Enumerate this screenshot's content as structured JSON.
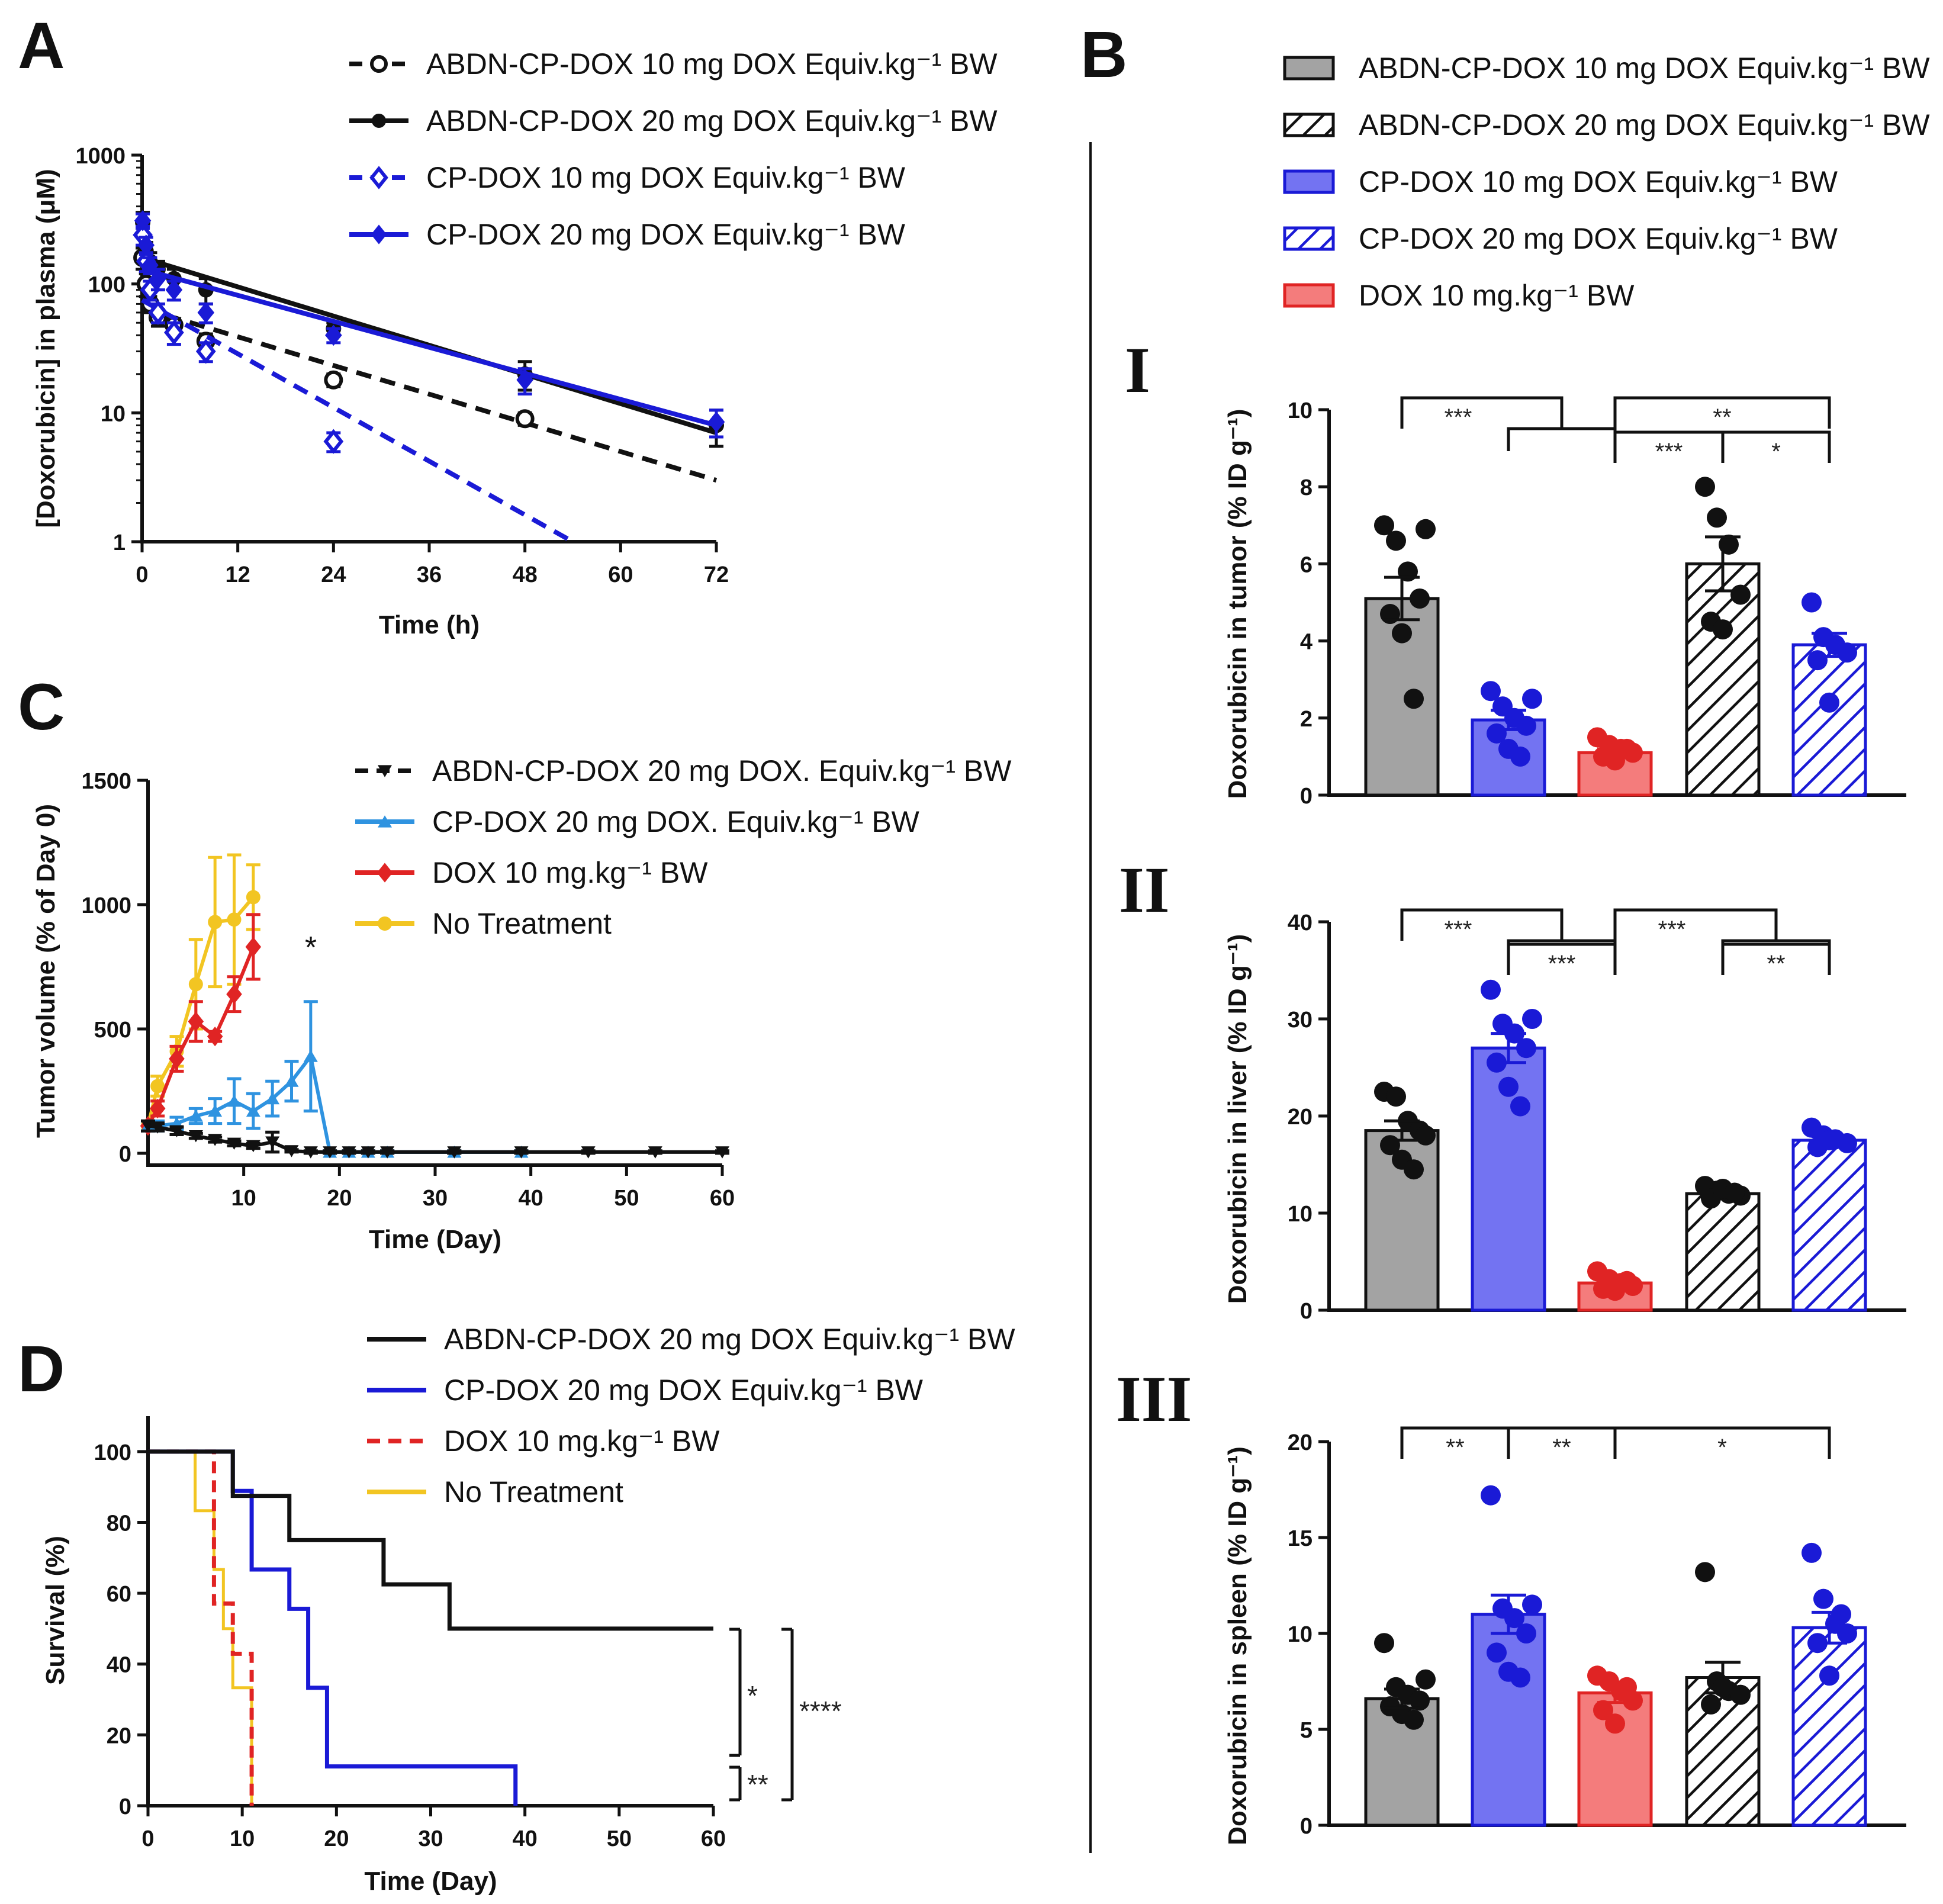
{
  "colors": {
    "black": "#111111",
    "blue": "#1a1ad6",
    "lightblue": "#2f93e0",
    "red": "#e02424",
    "yellow": "#f2c522",
    "gray": "#a3a3a3",
    "bluefill": "#7373f2",
    "redfill": "#f47c7c"
  },
  "chart_data": [
    {
      "id": "A",
      "panel_label": "A",
      "type": "line",
      "xlabel": "Time (h)",
      "ylabel": "[Doxorubicin] in plasma (μM)",
      "yscale": "log",
      "xlim": [
        0,
        72
      ],
      "ylim": [
        1,
        1000
      ],
      "xticks": [
        "0",
        "12",
        "24",
        "36",
        "48",
        "60",
        "72"
      ],
      "yticks": [
        "1",
        "10",
        "100",
        "1000"
      ],
      "series": [
        {
          "name": "ABDN-CP-DOX 10 mg DOX Equiv.kg⁻¹ BW",
          "color": "black",
          "dash": true,
          "marker": "open-circle",
          "x": [
            0.08,
            0.5,
            1,
            2,
            4,
            8,
            24,
            48
          ],
          "y": [
            160,
            100,
            70,
            55,
            48,
            36,
            18,
            9
          ],
          "err": [
            30,
            20,
            10,
            8,
            6,
            5,
            2,
            1
          ],
          "fit": [
            [
              0,
              65
            ],
            [
              72,
              3
            ]
          ]
        },
        {
          "name": "ABDN-CP-DOX 20 mg DOX Equiv.kg⁻¹ BW",
          "color": "black",
          "dash": false,
          "marker": "filled-circle",
          "x": [
            0.08,
            0.5,
            1,
            2,
            4,
            8,
            24,
            48,
            72
          ],
          "y": [
            300,
            180,
            150,
            130,
            110,
            90,
            45,
            20,
            8
          ],
          "err": [
            60,
            30,
            25,
            20,
            20,
            20,
            5,
            5,
            2.5
          ],
          "fit": [
            [
              0,
              160
            ],
            [
              72,
              7
            ]
          ]
        },
        {
          "name": "CP-DOX 10 mg DOX Equiv.kg⁻¹ BW",
          "color": "blue",
          "dash": true,
          "marker": "open-diamond",
          "x": [
            0.08,
            0.5,
            1,
            2,
            4,
            8,
            24
          ],
          "y": [
            240,
            150,
            90,
            60,
            42,
            30,
            6
          ],
          "err": [
            40,
            25,
            15,
            10,
            8,
            5,
            1
          ],
          "fit": [
            [
              0,
              75
            ],
            [
              54,
              1
            ]
          ]
        },
        {
          "name": "CP-DOX 20 mg DOX Equiv.kg⁻¹ BW",
          "color": "blue",
          "dash": false,
          "marker": "filled-diamond",
          "x": [
            0.08,
            0.5,
            1,
            2,
            4,
            8,
            24,
            48,
            72
          ],
          "y": [
            310,
            200,
            140,
            110,
            90,
            60,
            40,
            18,
            8.5
          ],
          "err": [
            40,
            30,
            20,
            20,
            15,
            10,
            5,
            4,
            2
          ],
          "fit": [
            [
              0,
              130
            ],
            [
              72,
              8
            ]
          ]
        }
      ]
    },
    {
      "id": "C",
      "panel_label": "C",
      "type": "line",
      "xlabel": "Time (Day)",
      "ylabel": "Tumor volume (% of Day 0)",
      "xlim": [
        0,
        60
      ],
      "ylim": [
        0,
        1500
      ],
      "xticks": [
        "10",
        "20",
        "30",
        "40",
        "50",
        "60"
      ],
      "yticks": [
        "0",
        "500",
        "1000",
        "1500"
      ],
      "annotation": "*",
      "series": [
        {
          "name": "ABDN-CP-DOX 20 mg DOX. Equiv.kg⁻¹ BW",
          "color": "black",
          "marker": "triangle-down",
          "x": [
            0,
            1,
            3,
            5,
            7,
            9,
            11,
            13,
            15,
            17,
            19,
            21,
            23,
            25,
            32,
            39,
            46,
            53,
            60
          ],
          "y": [
            110,
            105,
            90,
            70,
            55,
            40,
            30,
            45,
            10,
            5,
            5,
            5,
            5,
            5,
            5,
            5,
            5,
            5,
            5
          ],
          "err": [
            20,
            15,
            15,
            10,
            10,
            10,
            10,
            40,
            5,
            5,
            5,
            5,
            5,
            5,
            5,
            5,
            5,
            5,
            5
          ]
        },
        {
          "name": "CP-DOX 20 mg DOX. Equiv.kg⁻¹ BW",
          "color": "lightblue",
          "marker": "triangle-up",
          "x": [
            0,
            1,
            3,
            5,
            7,
            9,
            11,
            13,
            15,
            17,
            19,
            21,
            23,
            25,
            32,
            39
          ],
          "y": [
            110,
            110,
            120,
            150,
            170,
            210,
            170,
            220,
            290,
            390,
            5,
            5,
            5,
            5,
            5,
            5
          ],
          "err": [
            20,
            20,
            25,
            30,
            50,
            90,
            70,
            70,
            80,
            220,
            5,
            5,
            5,
            5,
            5,
            5
          ]
        },
        {
          "name": "DOX 10 mg.kg⁻¹ BW",
          "color": "red",
          "marker": "diamond",
          "x": [
            0,
            1,
            3,
            5,
            7,
            9,
            11
          ],
          "y": [
            110,
            180,
            380,
            530,
            470,
            640,
            830
          ],
          "err": [
            20,
            30,
            50,
            80,
            20,
            70,
            130
          ]
        },
        {
          "name": "No Treatment",
          "color": "yellow",
          "marker": "circle",
          "x": [
            0,
            1,
            3,
            5,
            7,
            9,
            11
          ],
          "y": [
            110,
            270,
            410,
            680,
            930,
            940,
            1030
          ],
          "err": [
            20,
            40,
            60,
            180,
            260,
            260,
            130
          ]
        }
      ]
    },
    {
      "id": "D",
      "panel_label": "D",
      "type": "line",
      "subtype": "kaplan-meier",
      "xlabel": "Time (Day)",
      "ylabel": "Survival (%)",
      "xlim": [
        0,
        60
      ],
      "ylim": [
        0,
        110
      ],
      "xticks": [
        "0",
        "10",
        "20",
        "30",
        "40",
        "50",
        "60"
      ],
      "yticks": [
        "0",
        "20",
        "40",
        "60",
        "80",
        "100"
      ],
      "series": [
        {
          "name": "ABDN-CP-DOX 20 mg DOX Equiv.kg⁻¹ BW",
          "color": "black",
          "dash": false,
          "steps": [
            [
              0,
              100
            ],
            [
              9,
              87.5
            ],
            [
              15,
              75
            ],
            [
              25,
              62.5
            ],
            [
              32,
              50
            ],
            [
              60,
              50
            ]
          ]
        },
        {
          "name": "CP-DOX 20 mg DOX Equiv.kg⁻¹ BW",
          "color": "blue",
          "dash": false,
          "steps": [
            [
              0,
              100
            ],
            [
              9,
              88.9
            ],
            [
              11,
              66.7
            ],
            [
              15,
              55.6
            ],
            [
              17,
              33.3
            ],
            [
              19,
              11.1
            ],
            [
              39,
              0
            ]
          ]
        },
        {
          "name": "DOX 10 mg.kg⁻¹ BW",
          "color": "red",
          "dash": true,
          "steps": [
            [
              0,
              100
            ],
            [
              7,
              57.1
            ],
            [
              9,
              42.9
            ],
            [
              11,
              0
            ]
          ]
        },
        {
          "name": "No Treatment",
          "color": "yellow",
          "dash": false,
          "steps": [
            [
              0,
              100
            ],
            [
              5,
              83.3
            ],
            [
              7,
              66.7
            ],
            [
              8,
              50
            ],
            [
              9,
              33.3
            ],
            [
              11,
              0
            ]
          ]
        }
      ],
      "significance": [
        "*",
        "****",
        "**"
      ]
    },
    {
      "id": "B",
      "panel_label": "B",
      "type": "bar",
      "legend": [
        {
          "name": "ABDN-CP-DOX 10 mg DOX Equiv.kg⁻¹ BW",
          "fill": "gray",
          "hatch": false,
          "edge": "black"
        },
        {
          "name": "ABDN-CP-DOX 20 mg DOX Equiv.kg⁻¹ BW",
          "fill": "white",
          "hatch": true,
          "edge": "black"
        },
        {
          "name": "CP-DOX 10 mg DOX Equiv.kg⁻¹ BW",
          "fill": "bluefill",
          "hatch": false,
          "edge": "blue"
        },
        {
          "name": "CP-DOX 20 mg DOX Equiv.kg⁻¹ BW",
          "fill": "white",
          "hatch": true,
          "edge": "blue"
        },
        {
          "name": "DOX 10 mg.kg⁻¹ BW",
          "fill": "redfill",
          "hatch": false,
          "edge": "red"
        }
      ],
      "subpanels": [
        {
          "roman": "I",
          "ylabel": "Doxorubicin in tumor (% ID g⁻¹)",
          "ylim": [
            0,
            10
          ],
          "yticks": [
            "0",
            "2",
            "4",
            "6",
            "8",
            "10"
          ],
          "categories": [
            "ABDN-CP-DOX 10",
            "CP-DOX 10",
            "DOX 10",
            "ABDN-CP-DOX 20",
            "CP-DOX 20"
          ],
          "values": [
            5.1,
            1.95,
            1.1,
            6.0,
            3.9
          ],
          "sem": [
            0.55,
            0.25,
            0.1,
            0.7,
            0.3
          ],
          "points": [
            [
              7.0,
              6.6,
              5.8,
              5.1,
              4.7,
              4.2,
              2.5,
              6.9
            ],
            [
              2.7,
              2.3,
              2.0,
              1.8,
              1.6,
              1.2,
              1.0,
              2.5
            ],
            [
              1.5,
              1.3,
              1.2,
              1.1,
              1.0,
              0.9,
              1.2
            ],
            [
              8.0,
              7.2,
              6.5,
              5.2,
              4.5,
              4.3
            ],
            [
              5.0,
              4.1,
              3.9,
              3.7,
              3.5,
              2.4
            ]
          ],
          "brackets": [
            {
              "a": 0,
              "b": [
                1,
                2
              ],
              "level": 0,
              "label": "***"
            },
            {
              "a": 2,
              "b": 4,
              "level": 0,
              "label": "**"
            },
            {
              "a": 2,
              "b": 3,
              "level": 1,
              "label": "***"
            },
            {
              "a": 3,
              "b": 4,
              "level": 1,
              "label": "*"
            }
          ]
        },
        {
          "roman": "II",
          "ylabel": "Doxorubicin in liver (% ID g⁻¹)",
          "ylim": [
            0,
            40
          ],
          "yticks": [
            "0",
            "10",
            "20",
            "30",
            "40"
          ],
          "categories": [
            "ABDN-CP-DOX 10",
            "CP-DOX 10",
            "DOX 10",
            "ABDN-CP-DOX 20",
            "CP-DOX 20"
          ],
          "values": [
            18.5,
            27.0,
            2.8,
            12.0,
            17.5
          ],
          "sem": [
            1.0,
            1.5,
            0.4,
            0.3,
            0.4
          ],
          "points": [
            [
              22.5,
              22.0,
              19.5,
              18.5,
              17.0,
              15.5,
              14.5,
              18.0
            ],
            [
              33.0,
              29.5,
              28.5,
              27.0,
              25.5,
              23.0,
              21.0,
              30.0
            ],
            [
              4.0,
              3.2,
              2.8,
              2.5,
              2.2,
              2.0,
              3.0
            ],
            [
              12.8,
              12.3,
              12.0,
              11.8,
              11.5,
              12.5,
              12.1
            ],
            [
              18.8,
              18.0,
              17.6,
              17.2,
              16.8,
              17.5
            ]
          ],
          "brackets": [
            {
              "a": 0,
              "b": [
                1,
                2
              ],
              "level": 0,
              "label": "***"
            },
            {
              "a": 1,
              "b": 2,
              "level": 1,
              "label": "***"
            },
            {
              "a": 2,
              "b": [
                3,
                4
              ],
              "level": 0,
              "label": "***"
            },
            {
              "a": 3,
              "b": 4,
              "level": 1,
              "label": "**"
            }
          ]
        },
        {
          "roman": "III",
          "ylabel": "Doxorubicin in spleen (% ID g⁻¹)",
          "ylim": [
            0,
            20
          ],
          "yticks": [
            "0",
            "5",
            "10",
            "15",
            "20"
          ],
          "categories": [
            "ABDN-CP-DOX 10",
            "CP-DOX 10",
            "DOX 10",
            "ABDN-CP-DOX 20",
            "CP-DOX 20"
          ],
          "values": [
            6.6,
            11.0,
            6.9,
            7.7,
            10.3
          ],
          "sem": [
            0.5,
            1.0,
            0.5,
            0.8,
            0.8
          ],
          "points": [
            [
              9.5,
              7.2,
              6.8,
              6.5,
              6.2,
              5.8,
              5.5,
              7.6
            ],
            [
              17.2,
              11.3,
              10.8,
              10.0,
              9.0,
              8.0,
              7.7,
              11.5
            ],
            [
              7.8,
              7.5,
              7.0,
              6.5,
              6.0,
              5.3,
              7.2
            ],
            [
              13.2,
              7.5,
              7.0,
              6.8,
              6.3,
              7.2
            ],
            [
              14.2,
              11.8,
              10.5,
              10.0,
              9.5,
              7.8,
              11.0
            ]
          ],
          "brackets": [
            {
              "a": 0,
              "b": 1,
              "level": 0,
              "label": "**"
            },
            {
              "a": 1,
              "b": 2,
              "level": 0,
              "label": "**"
            },
            {
              "a": 2,
              "b": 4,
              "level": 0,
              "label": "*"
            }
          ]
        }
      ]
    }
  ]
}
